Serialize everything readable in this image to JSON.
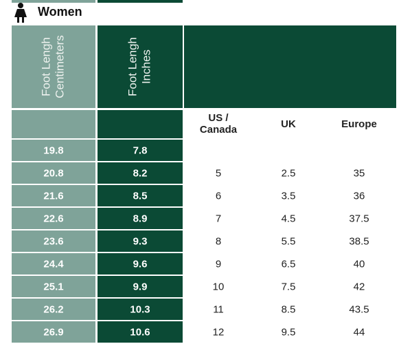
{
  "header": {
    "title": "Women"
  },
  "table": {
    "columns": [
      [
        "Foot Lengh",
        "Centimeters"
      ],
      [
        "Foot Lengh",
        "Inches"
      ]
    ],
    "subheaders": [
      [
        "US /",
        "Canada"
      ],
      "UK",
      "Europe"
    ],
    "rows": [
      [
        "19.8",
        "7.8",
        null,
        null,
        null
      ],
      [
        "20.8",
        "8.2",
        "5",
        "2.5",
        "35"
      ],
      [
        "21.6",
        "8.5",
        "6",
        "3.5",
        "36"
      ],
      [
        "22.6",
        "8.9",
        "7",
        "4.5",
        "37.5"
      ],
      [
        "23.6",
        "9.3",
        "8",
        "5.5",
        "38.5"
      ],
      [
        "24.4",
        "9.6",
        "9",
        "6.5",
        "40"
      ],
      [
        "25.1",
        "9.9",
        "10",
        "7.5",
        "42"
      ],
      [
        "26.2",
        "10.3",
        "11",
        "8.5",
        "43.5"
      ],
      [
        "26.9",
        "10.6",
        "12",
        "9.5",
        "44"
      ]
    ]
  }
}
